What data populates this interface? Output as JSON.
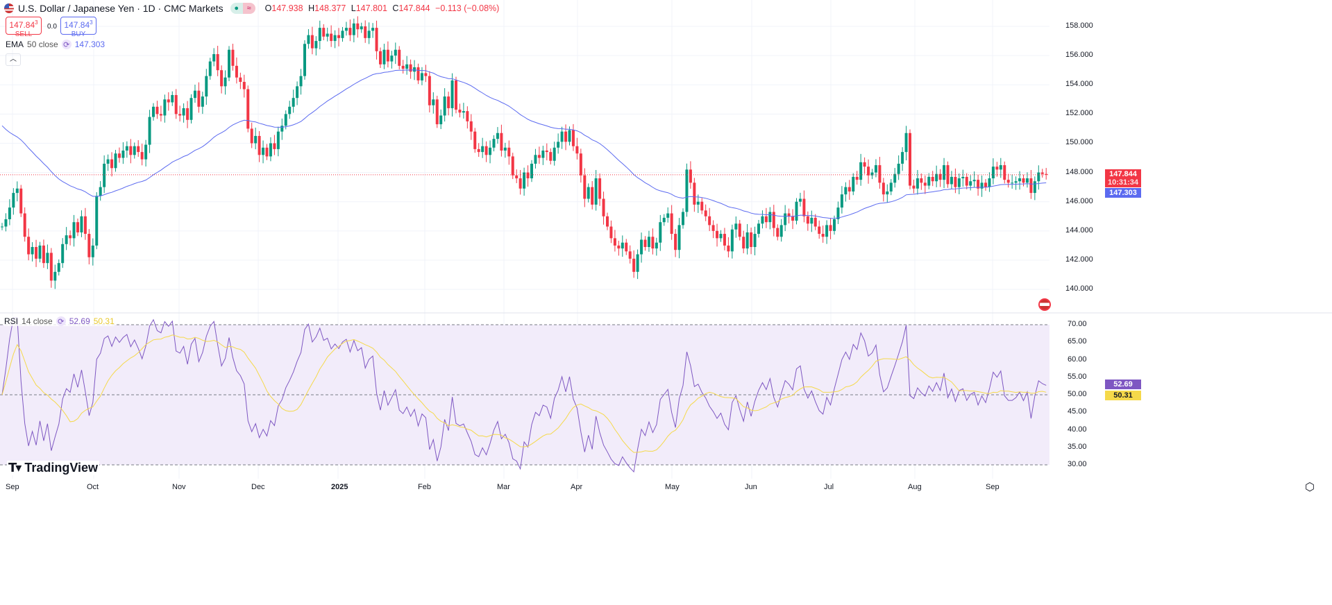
{
  "header": {
    "title": "U.S. Dollar / Japanese Yen · 1D · CMC Markets",
    "status_icon": "market-open-dot",
    "alt_icon": "approx-icon",
    "ohlc": {
      "o_label": "O",
      "o": "147.938",
      "h_label": "H",
      "h": "148.377",
      "l_label": "L",
      "l": "147.801",
      "c_label": "C",
      "c": "147.844",
      "change": "−0.113 (−0.08%)"
    }
  },
  "trade": {
    "sell_price": "147.84",
    "sell_sup": "3",
    "sell_label": "SELL",
    "spread": "0.0",
    "buy_price": "147.84",
    "buy_sup": "3",
    "buy_label": "BUY"
  },
  "ema_legend": {
    "name": "EMA",
    "params": "50 close",
    "value": "147.303"
  },
  "rsi_legend": {
    "name": "RSI",
    "params": "14 close",
    "value": "52.69",
    "ma_value": "50.31"
  },
  "price_axis": {
    "ticks": [
      "158.000",
      "156.000",
      "154.000",
      "152.000",
      "150.000",
      "148.000",
      "146.000",
      "144.000",
      "142.000",
      "140.000"
    ],
    "last_price": "147.844",
    "countdown": "10:31:34",
    "ema_value": "147.303"
  },
  "rsi_axis": {
    "ticks": [
      "70.00",
      "65.00",
      "60.00",
      "55.00",
      "50.00",
      "45.00",
      "40.00",
      "35.00",
      "30.00"
    ],
    "rsi_value": "52.69",
    "ma_value": "50.31"
  },
  "time_axis": [
    "Sep",
    "Oct",
    "Nov",
    "Dec",
    "2025",
    "Feb",
    "Mar",
    "Apr",
    "May",
    "Jun",
    "Jul",
    "Aug",
    "Sep"
  ],
  "logo": "TradingView",
  "colors": {
    "up": "#089981",
    "down": "#f23645",
    "ema": "#5b6af0",
    "rsi": "#7e57c2",
    "rsi_ma": "#f5d94a",
    "rsi_band": "#f2ecfa"
  },
  "chart_data": {
    "type": "candlestick",
    "ylim": [
      139.2,
      158.9
    ],
    "rsi_ylim": [
      30,
      70
    ],
    "grid": true,
    "close": [
      144.3,
      144.8,
      145.6,
      146.6,
      146.9,
      145.2,
      143.6,
      142.4,
      142.9,
      142.1,
      143.0,
      141.8,
      142.5,
      140.6,
      141.2,
      141.8,
      143.1,
      143.7,
      143.5,
      144.6,
      143.9,
      145.0,
      143.8,
      142.2,
      143.0,
      146.4,
      147.0,
      148.6,
      148.9,
      148.3,
      149.3,
      149.0,
      149.5,
      149.8,
      149.2,
      149.8,
      149.4,
      148.9,
      149.9,
      151.8,
      152.5,
      152.0,
      151.9,
      153.0,
      152.8,
      153.3,
      152.0,
      151.9,
      152.4,
      151.6,
      153.1,
      153.6,
      152.5,
      153.2,
      154.6,
      155.6,
      156.1,
      155.0,
      153.9,
      154.5,
      156.4,
      155.3,
      154.5,
      154.2,
      153.7,
      151.0,
      150.0,
      150.5,
      149.2,
      149.7,
      149.1,
      150.0,
      149.6,
      150.8,
      151.2,
      152.0,
      152.5,
      153.1,
      153.9,
      154.6,
      156.8,
      157.4,
      156.5,
      157.0,
      157.9,
      157.3,
      157.5,
      157.0,
      157.4,
      157.2,
      157.7,
      157.9,
      157.4,
      158.2,
      157.8,
      158.0,
      157.2,
      157.7,
      157.9,
      156.3,
      155.4,
      156.4,
      155.6,
      156.0,
      156.4,
      155.3,
      155.1,
      155.4,
      154.9,
      155.2,
      154.3,
      154.8,
      154.6,
      152.6,
      153.0,
      151.3,
      151.9,
      153.2,
      152.4,
      154.3,
      152.3,
      152.1,
      152.2,
      151.5,
      150.8,
      149.6,
      149.4,
      149.8,
      149.2,
      149.7,
      150.3,
      150.7,
      149.5,
      149.7,
      149.1,
      147.8,
      147.6,
      146.9,
      148.0,
      147.6,
      148.6,
      149.2,
      149.0,
      149.5,
      149.4,
      148.8,
      149.7,
      150.1,
      150.8,
      150.1,
      150.9,
      149.8,
      149.3,
      147.8,
      146.2,
      147.0,
      145.8,
      147.6,
      146.2,
      145.0,
      144.3,
      143.5,
      143.0,
      142.8,
      143.2,
      142.6,
      142.1,
      141.2,
      142.4,
      143.4,
      142.9,
      143.6,
      142.8,
      143.2,
      144.6,
      144.9,
      145.2,
      143.8,
      142.7,
      144.4,
      145.3,
      148.2,
      147.3,
      145.8,
      146.0,
      145.4,
      145.0,
      144.4,
      144.0,
      143.5,
      143.8,
      143.0,
      142.6,
      144.1,
      144.5,
      143.6,
      142.8,
      143.9,
      142.9,
      143.8,
      144.5,
      145.0,
      144.6,
      145.3,
      144.2,
      143.6,
      144.4,
      145.2,
      145.0,
      144.7,
      146.0,
      146.2,
      145.0,
      144.5,
      144.9,
      144.3,
      143.8,
      143.6,
      144.4,
      144.0,
      144.8,
      145.6,
      146.5,
      147.0,
      146.7,
      147.7,
      147.5,
      148.7,
      148.4,
      147.8,
      148.0,
      148.5,
      147.3,
      146.5,
      146.7,
      147.3,
      147.9,
      148.6,
      149.4,
      150.7,
      147.1,
      146.9,
      147.6,
      147.3,
      147.1,
      147.7,
      147.4,
      147.9,
      147.5,
      148.5,
      147.2,
      147.7,
      147.0,
      147.6,
      147.7,
      147.1,
      147.4,
      147.5,
      146.9,
      147.3,
      147.0,
      147.6,
      148.4,
      148.2,
      148.5,
      147.5,
      147.3,
      147.3,
      147.4,
      147.6,
      147.3,
      147.6,
      146.6,
      147.4,
      148.0,
      147.9,
      147.844
    ]
  }
}
